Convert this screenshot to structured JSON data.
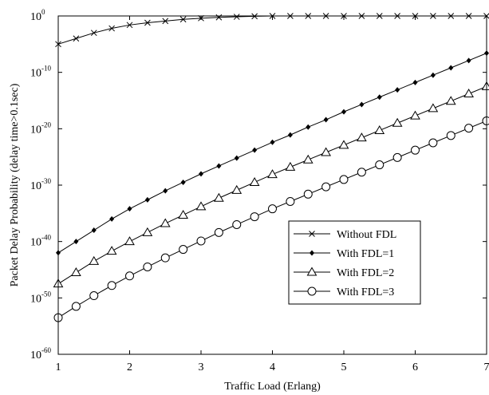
{
  "chart_data": {
    "type": "line",
    "title": "",
    "xlabel": "Traffic Load (Erlang)",
    "ylabel": "Packet Delay Probability (delay time>0.1sec)",
    "y_scale": "log",
    "xlim": [
      1,
      7
    ],
    "ylim_exp": [
      -60,
      0
    ],
    "x_ticks": [
      "1",
      "2",
      "3",
      "4",
      "5",
      "6",
      "7"
    ],
    "y_ticks": [
      {
        "base": "10",
        "exp": "0"
      },
      {
        "base": "10",
        "exp": "-10"
      },
      {
        "base": "10",
        "exp": "-20"
      },
      {
        "base": "10",
        "exp": "-30"
      },
      {
        "base": "10",
        "exp": "-40"
      },
      {
        "base": "10",
        "exp": "-50"
      },
      {
        "base": "10",
        "exp": "-60"
      }
    ],
    "y_tick_exps": [
      0,
      -10,
      -20,
      -30,
      -40,
      -50,
      -60
    ],
    "grid": false,
    "legend_position": "bottom-right",
    "x": [
      1,
      1.25,
      1.5,
      1.75,
      2,
      2.25,
      2.5,
      2.75,
      3,
      3.25,
      3.5,
      3.75,
      4,
      4.25,
      4.5,
      4.75,
      5,
      5.25,
      5.5,
      5.75,
      6,
      6.25,
      6.5,
      6.75,
      7
    ],
    "series": [
      {
        "name": "Without FDL",
        "marker": "x",
        "values_log10": [
          -5.0,
          -4.0,
          -3.0,
          -2.2,
          -1.6,
          -1.2,
          -0.9,
          -0.6,
          -0.4,
          -0.25,
          -0.15,
          -0.05,
          0,
          0,
          0,
          0,
          0,
          0,
          0,
          0,
          0,
          0,
          0,
          0,
          0
        ]
      },
      {
        "name": "With FDL=1",
        "marker": "diamond",
        "values_log10": [
          -42.0,
          -40.0,
          -38.0,
          -36.0,
          -34.2,
          -32.6,
          -31.0,
          -29.5,
          -28.0,
          -26.6,
          -25.2,
          -23.8,
          -22.4,
          -21.1,
          -19.7,
          -18.4,
          -17.0,
          -15.7,
          -14.4,
          -13.1,
          -11.8,
          -10.5,
          -9.2,
          -7.9,
          -6.6
        ]
      },
      {
        "name": "With FDL=2",
        "marker": "triangle",
        "values_log10": [
          -47.5,
          -45.5,
          -43.5,
          -41.7,
          -40.0,
          -38.4,
          -36.8,
          -35.3,
          -33.8,
          -32.3,
          -30.9,
          -29.5,
          -28.1,
          -26.8,
          -25.5,
          -24.2,
          -22.9,
          -21.6,
          -20.3,
          -19.0,
          -17.7,
          -16.4,
          -15.1,
          -13.8,
          -12.5
        ]
      },
      {
        "name": "With FDL=3",
        "marker": "circle",
        "values_log10": [
          -53.5,
          -51.5,
          -49.6,
          -47.8,
          -46.1,
          -44.5,
          -42.9,
          -41.4,
          -39.9,
          -38.4,
          -37.0,
          -35.6,
          -34.2,
          -32.9,
          -31.6,
          -30.3,
          -29.0,
          -27.7,
          -26.4,
          -25.1,
          -23.8,
          -22.5,
          -21.2,
          -19.9,
          -18.6
        ]
      }
    ]
  }
}
